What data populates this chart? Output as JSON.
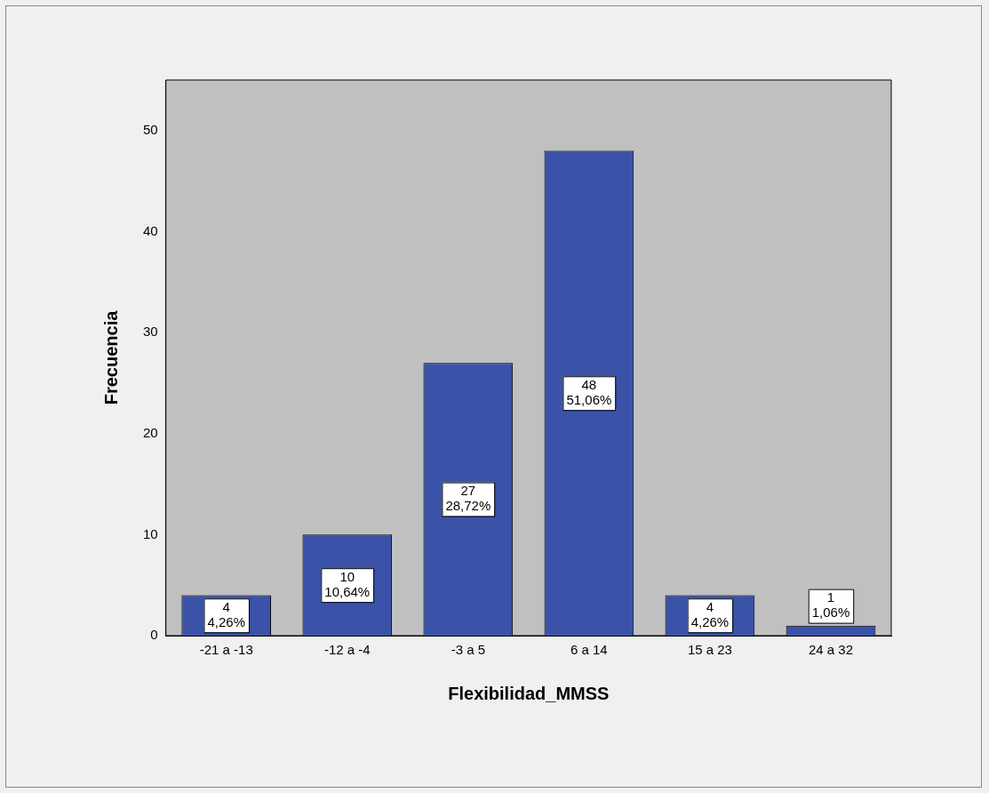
{
  "chart_data": {
    "type": "bar",
    "xlabel": "Flexibilidad_MMSS",
    "ylabel": "Frecuencia",
    "categories": [
      "-21 a -13",
      "-12 a -4",
      "-3 a 5",
      "6 a 14",
      "15 a 23",
      "24 a 32"
    ],
    "values": [
      4,
      10,
      27,
      48,
      4,
      1
    ],
    "value_labels": [
      "4\n4,26%",
      "10\n10,64%",
      "27\n28,72%",
      "48\n51,06%",
      "4\n4,26%",
      "1\n1,06%"
    ],
    "color": "#3a53a8",
    "ylim": [
      0,
      55
    ],
    "yticks": [
      0,
      10,
      20,
      30,
      40,
      50
    ],
    "grid": false,
    "legend": false
  }
}
